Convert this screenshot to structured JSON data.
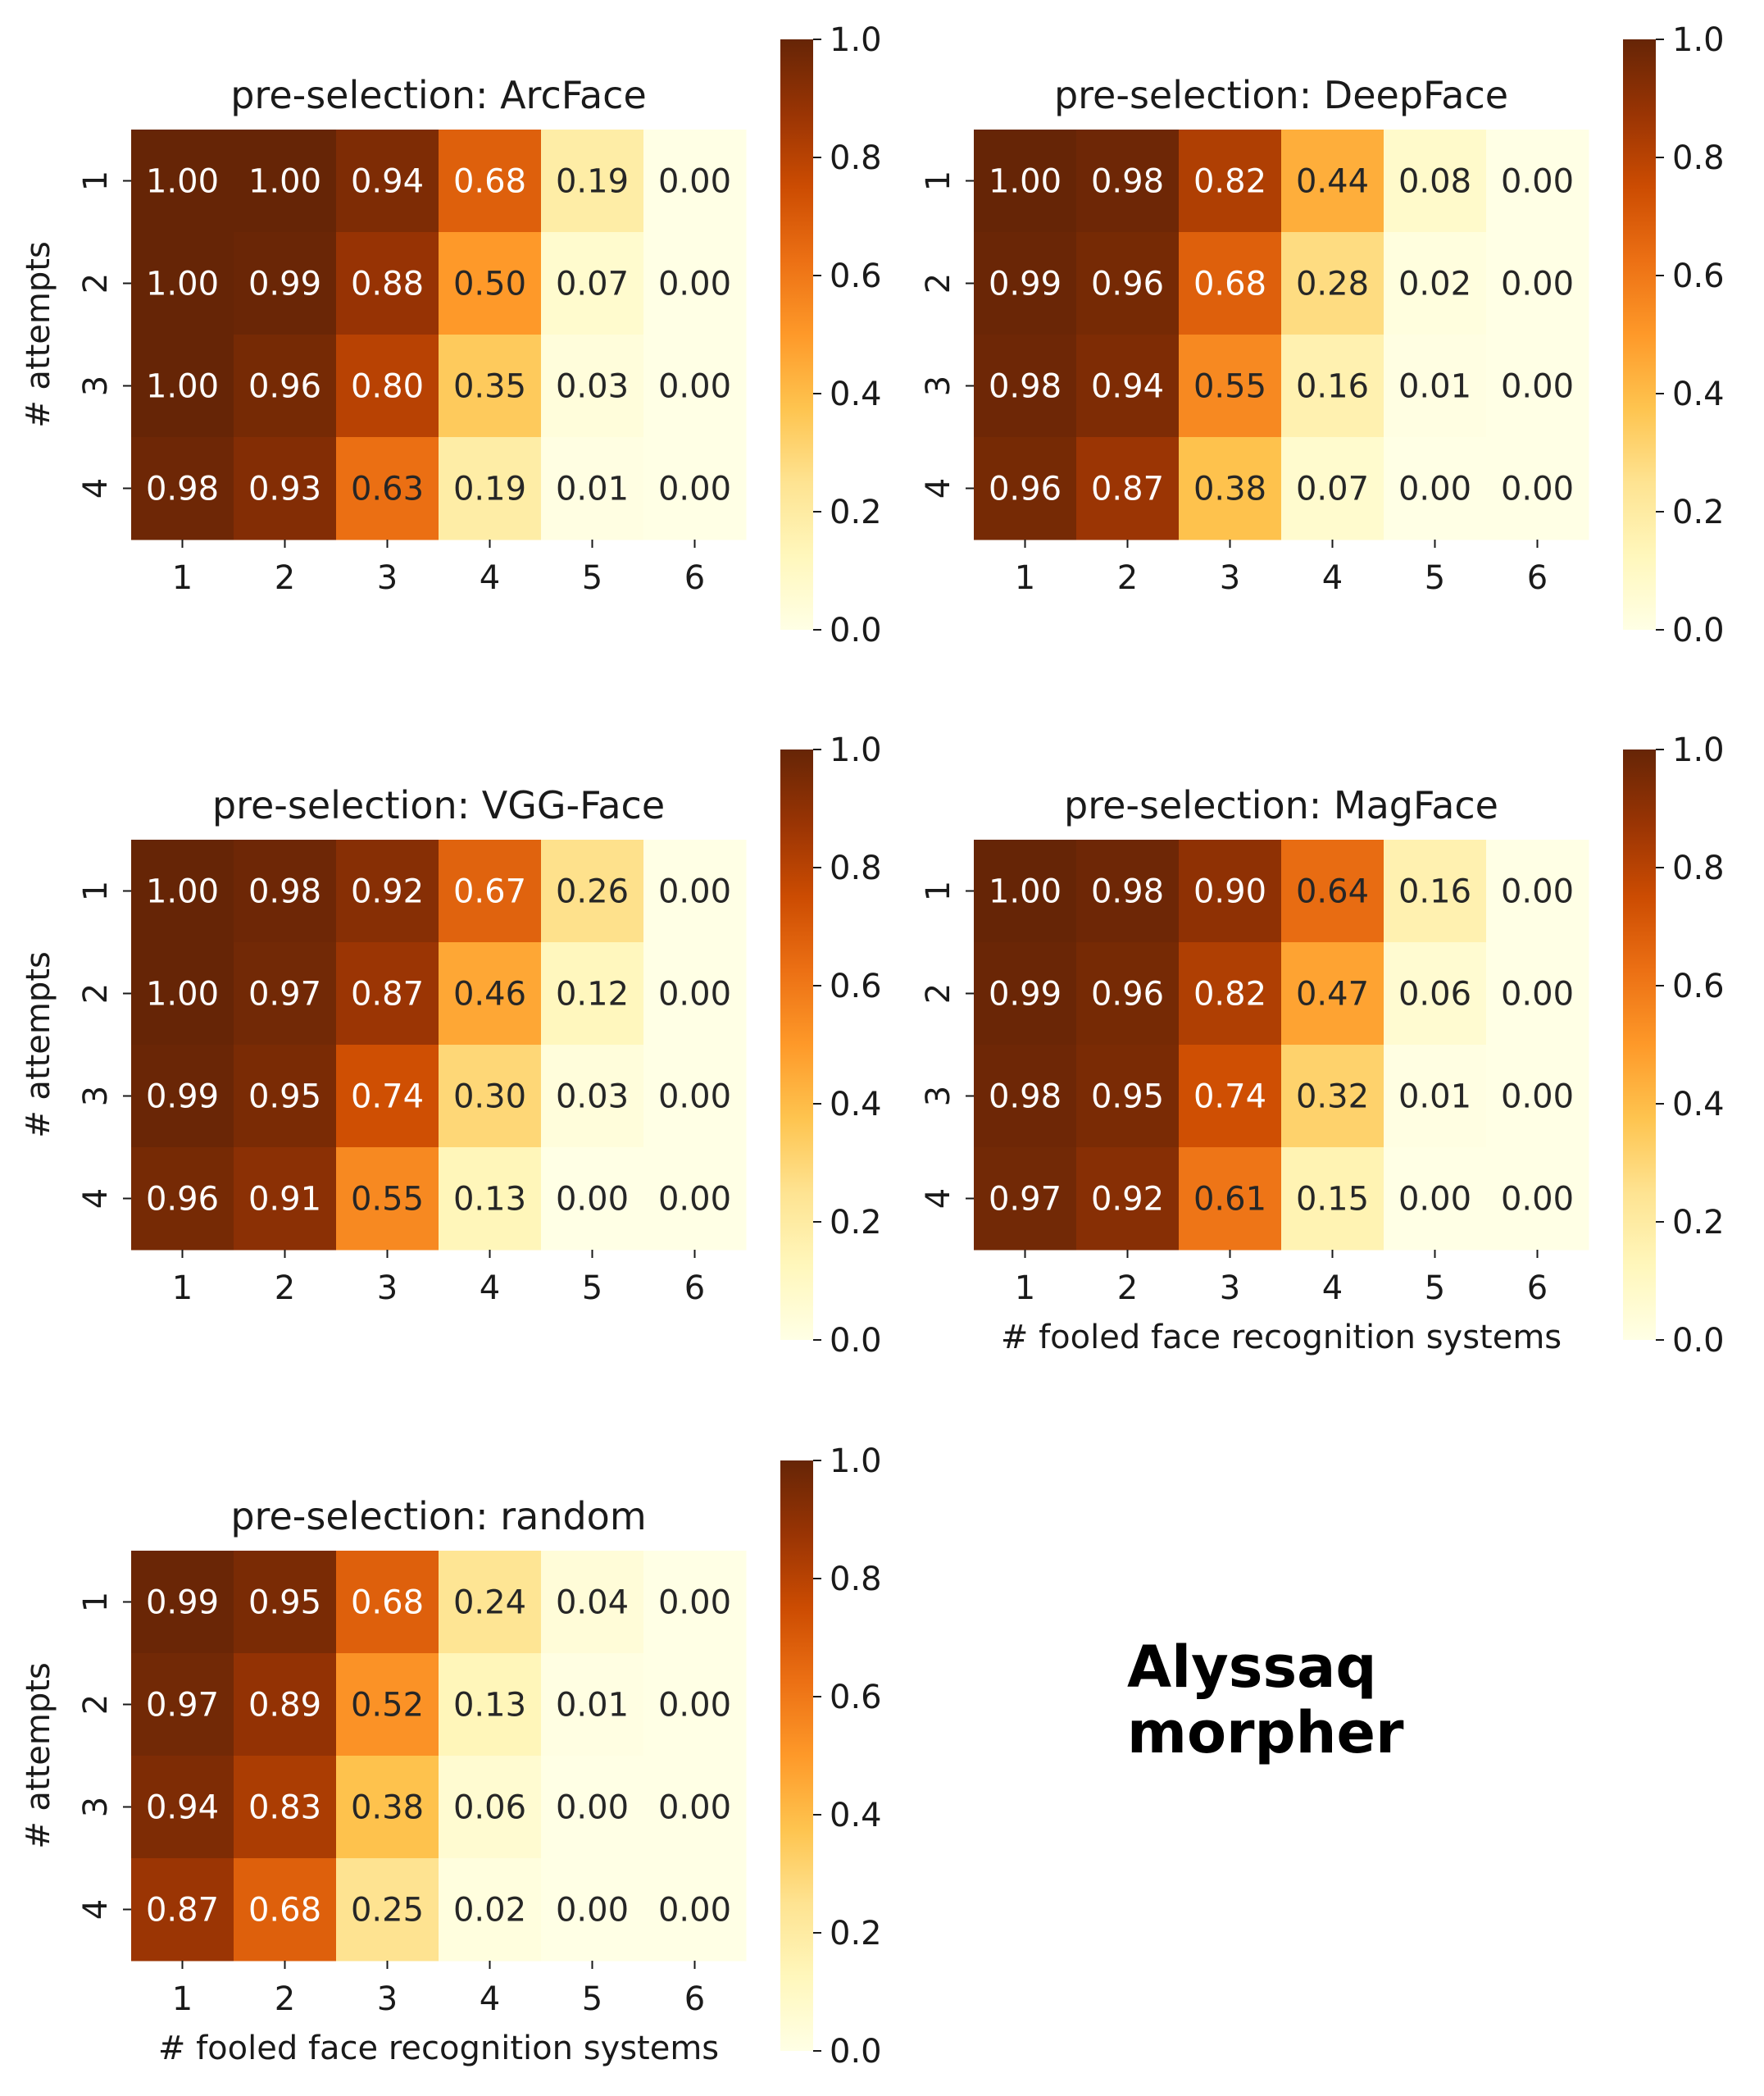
{
  "figure_annotation": [
    "Alyssaq",
    "morpher"
  ],
  "chart_data": [
    {
      "type": "heatmap",
      "title": "pre-selection: ArcFace",
      "xlabel": "",
      "ylabel": "# attempts",
      "x_categories": [
        "1",
        "2",
        "3",
        "4",
        "5",
        "6"
      ],
      "y_categories": [
        "1",
        "2",
        "3",
        "4"
      ],
      "values": [
        [
          1.0,
          1.0,
          0.94,
          0.68,
          0.19,
          0.0
        ],
        [
          1.0,
          0.99,
          0.88,
          0.5,
          0.07,
          0.0
        ],
        [
          1.0,
          0.96,
          0.8,
          0.35,
          0.03,
          0.0
        ],
        [
          0.98,
          0.93,
          0.63,
          0.19,
          0.01,
          0.0
        ]
      ],
      "vmin": 0.0,
      "vmax": 1.0,
      "colorbar_ticks": [
        "0.0",
        "0.2",
        "0.4",
        "0.6",
        "0.8",
        "1.0"
      ]
    },
    {
      "type": "heatmap",
      "title": "pre-selection: DeepFace",
      "xlabel": "",
      "ylabel": "",
      "x_categories": [
        "1",
        "2",
        "3",
        "4",
        "5",
        "6"
      ],
      "y_categories": [
        "1",
        "2",
        "3",
        "4"
      ],
      "values": [
        [
          1.0,
          0.98,
          0.82,
          0.44,
          0.08,
          0.0
        ],
        [
          0.99,
          0.96,
          0.68,
          0.28,
          0.02,
          0.0
        ],
        [
          0.98,
          0.94,
          0.55,
          0.16,
          0.01,
          0.0
        ],
        [
          0.96,
          0.87,
          0.38,
          0.07,
          0.0,
          0.0
        ]
      ],
      "vmin": 0.0,
      "vmax": 1.0,
      "colorbar_ticks": [
        "0.0",
        "0.2",
        "0.4",
        "0.6",
        "0.8",
        "1.0"
      ]
    },
    {
      "type": "heatmap",
      "title": "pre-selection: VGG-Face",
      "xlabel": "",
      "ylabel": "# attempts",
      "x_categories": [
        "1",
        "2",
        "3",
        "4",
        "5",
        "6"
      ],
      "y_categories": [
        "1",
        "2",
        "3",
        "4"
      ],
      "values": [
        [
          1.0,
          0.98,
          0.92,
          0.67,
          0.26,
          0.0
        ],
        [
          1.0,
          0.97,
          0.87,
          0.46,
          0.12,
          0.0
        ],
        [
          0.99,
          0.95,
          0.74,
          0.3,
          0.03,
          0.0
        ],
        [
          0.96,
          0.91,
          0.55,
          0.13,
          0.0,
          0.0
        ]
      ],
      "vmin": 0.0,
      "vmax": 1.0,
      "colorbar_ticks": [
        "0.0",
        "0.2",
        "0.4",
        "0.6",
        "0.8",
        "1.0"
      ]
    },
    {
      "type": "heatmap",
      "title": "pre-selection: MagFace",
      "xlabel": "# fooled face recognition systems",
      "ylabel": "",
      "x_categories": [
        "1",
        "2",
        "3",
        "4",
        "5",
        "6"
      ],
      "y_categories": [
        "1",
        "2",
        "3",
        "4"
      ],
      "values": [
        [
          1.0,
          0.98,
          0.9,
          0.64,
          0.16,
          0.0
        ],
        [
          0.99,
          0.96,
          0.82,
          0.47,
          0.06,
          0.0
        ],
        [
          0.98,
          0.95,
          0.74,
          0.32,
          0.01,
          0.0
        ],
        [
          0.97,
          0.92,
          0.61,
          0.15,
          0.0,
          0.0
        ]
      ],
      "vmin": 0.0,
      "vmax": 1.0,
      "colorbar_ticks": [
        "0.0",
        "0.2",
        "0.4",
        "0.6",
        "0.8",
        "1.0"
      ]
    },
    {
      "type": "heatmap",
      "title": "pre-selection: random",
      "xlabel": "# fooled face recognition systems",
      "ylabel": "# attempts",
      "x_categories": [
        "1",
        "2",
        "3",
        "4",
        "5",
        "6"
      ],
      "y_categories": [
        "1",
        "2",
        "3",
        "4"
      ],
      "values": [
        [
          0.99,
          0.95,
          0.68,
          0.24,
          0.04,
          0.0
        ],
        [
          0.97,
          0.89,
          0.52,
          0.13,
          0.01,
          0.0
        ],
        [
          0.94,
          0.83,
          0.38,
          0.06,
          0.0,
          0.0
        ],
        [
          0.87,
          0.68,
          0.25,
          0.02,
          0.0,
          0.0
        ]
      ],
      "vmin": 0.0,
      "vmax": 1.0,
      "colorbar_ticks": [
        "0.0",
        "0.2",
        "0.4",
        "0.6",
        "0.8",
        "1.0"
      ]
    }
  ],
  "colormap": {
    "name": "YlOrBr",
    "stops": [
      "#ffffe5",
      "#fff7bc",
      "#fee391",
      "#fec44f",
      "#fe9929",
      "#ec7014",
      "#cc4c02",
      "#993404",
      "#662506"
    ]
  }
}
